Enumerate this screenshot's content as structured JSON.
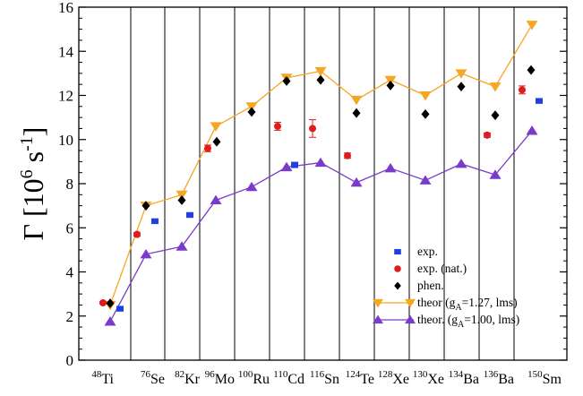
{
  "chart_data": {
    "type": "scatter",
    "title": "",
    "xlabel": "",
    "ylabel": {
      "main": "Γ [10",
      "exp": "6",
      "unit": " s",
      "unit_exp": "-1",
      "close": "]"
    },
    "ylim": [
      0,
      16
    ],
    "yticks": [
      0,
      2,
      4,
      6,
      8,
      10,
      12,
      14,
      16
    ],
    "grid": false,
    "legend_position": "bottom-right",
    "categories": [
      {
        "mass": "48",
        "element": "Ti"
      },
      {
        "mass": "76",
        "element": "Se"
      },
      {
        "mass": "82",
        "element": "Kr"
      },
      {
        "mass": "96",
        "element": "Mo"
      },
      {
        "mass": "100",
        "element": "Ru"
      },
      {
        "mass": "110",
        "element": "Cd"
      },
      {
        "mass": "116",
        "element": "Sn"
      },
      {
        "mass": "124",
        "element": "Te"
      },
      {
        "mass": "128",
        "element": "Xe"
      },
      {
        "mass": "130",
        "element": "Xe"
      },
      {
        "mass": "134",
        "element": "Ba"
      },
      {
        "mass": "136",
        "element": "Ba"
      },
      {
        "mass": "150",
        "element": "Sm"
      }
    ],
    "series": [
      {
        "name": "exp.",
        "marker": "square",
        "color": "#1f3fe0",
        "points": [
          {
            "x": 0,
            "y": 2.33,
            "err": 0.05
          },
          {
            "x": 1,
            "y": 6.3,
            "err": 0.08
          },
          {
            "x": 2,
            "y": 6.58,
            "err": 0.07
          },
          {
            "x": 5,
            "y": 8.85,
            "err": 0.12
          },
          {
            "x": 12,
            "y": 11.75,
            "err": 0.07
          }
        ]
      },
      {
        "name": "exp. (nat.)",
        "marker": "circle",
        "color": "#e01b1b",
        "points": [
          {
            "x": 0,
            "y": 2.6,
            "err": 0.05
          },
          {
            "x": 1,
            "y": 5.7,
            "err": 0.08
          },
          {
            "x": 3,
            "y": 9.6,
            "err": 0.15
          },
          {
            "x": 5,
            "y": 10.6,
            "err": 0.18
          },
          {
            "x": 6,
            "y": 10.5,
            "err": 0.4
          },
          {
            "x": 7,
            "y": 9.27,
            "err": 0.12
          },
          {
            "x": 11,
            "y": 10.2,
            "err": 0.1
          },
          {
            "x": 12,
            "y": 12.25,
            "err": 0.18
          }
        ]
      },
      {
        "name": "phen.",
        "marker": "diamond",
        "color": "#000000",
        "points": [
          {
            "x": 0,
            "y": 2.58
          },
          {
            "x": 1,
            "y": 7.0
          },
          {
            "x": 2,
            "y": 7.25
          },
          {
            "x": 3,
            "y": 9.9
          },
          {
            "x": 4,
            "y": 11.25
          },
          {
            "x": 5,
            "y": 12.65
          },
          {
            "x": 6,
            "y": 12.7
          },
          {
            "x": 7,
            "y": 11.2
          },
          {
            "x": 8,
            "y": 12.45
          },
          {
            "x": 9,
            "y": 11.15
          },
          {
            "x": 10,
            "y": 12.4
          },
          {
            "x": 11,
            "y": 11.1
          },
          {
            "x": 12,
            "y": 13.15
          }
        ]
      }
    ],
    "lines": [
      {
        "name": "theor (g",
        "name_sub": "A",
        "name_rest": "=1.27, lms)",
        "marker": "triangle-down",
        "color": "#f5a623",
        "values": [
          2.5,
          7.0,
          7.5,
          10.6,
          11.5,
          12.8,
          13.1,
          11.8,
          12.7,
          12.0,
          13.0,
          12.4,
          15.2
        ]
      },
      {
        "name": "theor. (g",
        "name_sub": "A",
        "name_rest": "=1.00, lms)",
        "marker": "triangle-up",
        "color": "#7a3cc8",
        "values": [
          1.75,
          4.8,
          5.15,
          7.25,
          7.85,
          8.75,
          8.95,
          8.05,
          8.7,
          8.15,
          8.9,
          8.4,
          10.4
        ]
      }
    ]
  }
}
